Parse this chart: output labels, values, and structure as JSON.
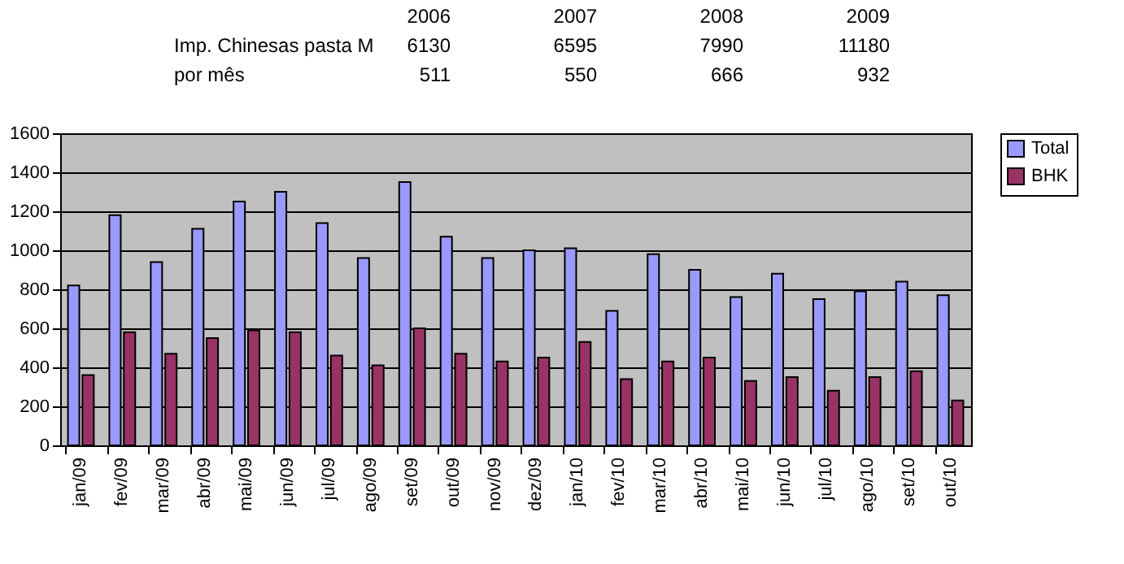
{
  "chart_data": {
    "type": "bar",
    "categories": [
      "jan/09",
      "fev/09",
      "mar/09",
      "abr/09",
      "mai/09",
      "jun/09",
      "jul/09",
      "ago/09",
      "set/09",
      "out/09",
      "nov/09",
      "dez/09",
      "jan/10",
      "fev/10",
      "mar/10",
      "abr/10",
      "mai/10",
      "jun/10",
      "jul/10",
      "ago/10",
      "set/10",
      "out/10"
    ],
    "series": [
      {
        "name": "Total",
        "color": "#9999ff",
        "values": [
          820,
          1180,
          940,
          1110,
          1250,
          1300,
          1140,
          960,
          1350,
          1070,
          960,
          1000,
          1010,
          690,
          980,
          900,
          760,
          880,
          750,
          790,
          840,
          770
        ]
      },
      {
        "name": "BHK",
        "color": "#993366",
        "values": [
          360,
          580,
          470,
          550,
          590,
          580,
          460,
          410,
          600,
          470,
          430,
          450,
          530,
          340,
          430,
          450,
          330,
          350,
          280,
          350,
          380,
          230
        ]
      }
    ],
    "ylim": [
      0,
      1600
    ],
    "yticks": [
      0,
      200,
      400,
      600,
      800,
      {
        "value": 1000,
        "label": "1000"
      },
      {
        "value": 1200,
        "label": "1200"
      },
      {
        "value": 1400,
        "label": "1400"
      },
      {
        "value": 1600,
        "label": "1600"
      }
    ],
    "grid": "y",
    "legend": "right",
    "annotations": [
      "2006",
      "2007",
      "2008",
      "2009",
      "Imp. Chinesas pasta M",
      "6130",
      "6595",
      "7990",
      "11180",
      "por mês",
      "511",
      "550",
      "666",
      "932"
    ]
  }
}
